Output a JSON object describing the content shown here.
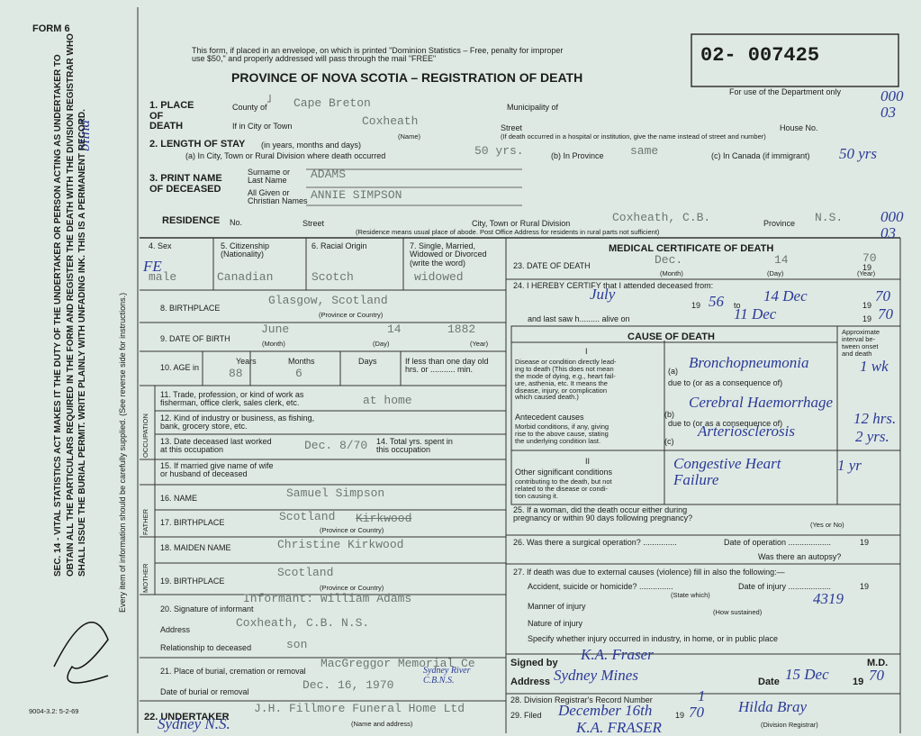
{
  "header": {
    "form": "FORM 6",
    "postal_note": "This form, if placed in an envelope, on which is printed \"Dominion Statistics – Free, penalty for improper\nuse $50,\" and properly addressed will pass through the mail \"FREE\"",
    "title": "PROVINCE OF NOVA SCOTIA – REGISTRATION OF DEATH",
    "registration_number": "02- 007425",
    "department_note": "For use of the Department only",
    "department_code": "000\n03"
  },
  "margin": {
    "notice": "SEC. 14 - VITAL STATISTICS ACT MAKES IT THE DUTY OF THE UNDERTAKER OR PERSON ACTING AS UNDERTAKER TO OBTAIN ALL THE PARTICULARS REQUIRED IN THE FORM AND REGISTER THE DEATH WITH THE DIVISION REGISTRAR WHO SHALL ISSUE THE BURIAL PERMIT. WRITE PLAINLY WITH UNFADING INK. THIS IS A PERMANENT RECORD.",
    "instruction": "Every item of information should be carefully supplied. (See reverse side for instructions.)",
    "handwritten": "blind",
    "print_code": "9004-3.2: 5-2-69"
  },
  "place": {
    "label": "1. PLACE\nOF\nDEATH",
    "county_label": "County of",
    "county": "Cape Breton",
    "municipality_label": "Municipality of",
    "city_label": "If in City or Town",
    "city": "Coxheath",
    "name_hint": "(Name)",
    "street_label": "Street",
    "house_label": "House No.",
    "hospital_note": "(If death occurred in a hospital or institution, give the name instead of street and number)"
  },
  "stay": {
    "label": "2. LENGTH OF STAY",
    "label_hint": "(in years, months and days)",
    "a_label": "(a) In City, Town or Rural Division where death occurred",
    "a": "50 yrs.",
    "b_label": "(b) In Province",
    "b": "same",
    "c_label": "(c) In Canada (if immigrant)",
    "c": "50 yrs"
  },
  "name": {
    "label": "3. PRINT NAME\nOF DECEASED",
    "surname_label": "Surname or\nLast Name",
    "surname": "ADAMS",
    "given_label": "All Given or\nChristian Names",
    "given": "ANNIE SIMPSON"
  },
  "residence": {
    "label": "RESIDENCE",
    "no_label": "No.",
    "street_label": "Street",
    "city_label": "City, Town or Rural Division",
    "city": "Coxheath, C.B.",
    "province_label": "Province",
    "province": "N.S.",
    "note": "(Residence means usual place of abode. Post Office Address for residents in rural parts not sufficient)",
    "code": "000\n03"
  },
  "personal": {
    "sex_label": "4. Sex",
    "sex_note": "FE",
    "sex": "male",
    "citizenship_label": "5. Citizenship\n(Nationality)",
    "citizenship": "Canadian",
    "racial_label": "6. Racial Origin",
    "racial": "Scotch",
    "status_label": "7. Single, Married,\nWidowed or Divorced\n(write the word)",
    "status": "widowed",
    "birthplace_label": "8. BIRTHPLACE",
    "birthplace": "Glasgow, Scotland",
    "birthplace_hint": "(Province or Country)",
    "dob_label": "9. DATE OF BIRTH",
    "dob_month": "June",
    "dob_day": "14",
    "dob_year": "1882",
    "month_hint": "(Month)",
    "day_hint": "(Day)",
    "year_hint": "(Year)",
    "age_label": "10. AGE in",
    "years_label": "Years",
    "years": "88",
    "months_label": "Months",
    "months": "6",
    "days_label": "Days",
    "infant_label": "If less than one day old\nhrs. or ........... min."
  },
  "occupation": {
    "section": "OCCUPATION",
    "trade_label": "11. Trade, profession, or kind of work as\nfisherman, office clerk, sales clerk, etc.",
    "trade": "at home",
    "industry_label": "12. Kind of industry or business, as fishing,\nbank, grocery store, etc.",
    "worked_label": "13. Date deceased last worked\nat this occupation",
    "worked": "Dec. 8/70",
    "years_label": "14. Total yrs. spent in\nthis occupation"
  },
  "spouse": {
    "label": "15. If married give name of wife\nor husband of deceased"
  },
  "father": {
    "section": "FATHER",
    "name_label": "16. NAME",
    "name": "Samuel Simpson",
    "birthplace_label": "17. BIRTHPLACE",
    "birthplace": "Scotland",
    "struck": "Kirkwood",
    "hint": "(Province or Country)"
  },
  "mother": {
    "section": "MOTHER",
    "name_label": "18. MAIDEN NAME",
    "name": "Christine Kirkwood",
    "birthplace_label": "19. BIRTHPLACE",
    "birthplace": "Scotland",
    "hint": "(Province or Country)"
  },
  "informant": {
    "label": "20. Signature of informant",
    "signature": "Informant: William Adams",
    "address_label": "Address",
    "address": "Coxheath, C.B. N.S.",
    "relationship_label": "Relationship to deceased",
    "relationship": "son"
  },
  "burial": {
    "place_label": "21. Place of burial, cremation or removal",
    "place": "MacGreggor Memorial Ce",
    "place_note": "Sydney River\nC.B.N.S.",
    "date_label": "Date of burial or removal",
    "date": "Dec. 16, 1970"
  },
  "undertaker": {
    "label": "22. UNDERTAKER",
    "name": "J.H. Fillmore Funeral Home Ltd",
    "hint": "(Name and address)",
    "address": "Sydney N.S."
  },
  "medical": {
    "title": "MEDICAL CERTIFICATE OF DEATH",
    "death_label": "23. DATE OF DEATH",
    "death_month": "Dec.",
    "death_day": "14",
    "death_century": "19",
    "death_year": "70",
    "month_hint": "(Month)",
    "day_hint": "(Day)",
    "year_hint": "(Year)",
    "certify_label": "24. I HEREBY CERTIFY that I attended deceased from:",
    "from": "July",
    "from_century": "19",
    "from_year": "56",
    "to_label": "to",
    "to": "14 Dec",
    "to_century": "19",
    "to_year": "70",
    "last_label": "and last saw h......... alive on",
    "last": "11 Dec",
    "last_century": "19",
    "last_year": "70"
  },
  "cause": {
    "title": "CAUSE OF DEATH",
    "interval_label": "Approximate\ninterval be-\ntween onset\nand death",
    "part1": "I",
    "direct_label": "Disease or condition directly lead-\ning to death (This does not mean\nthe mode of dying, e.g., heart fail-\nure, asthenia, etc. It means the\ndisease, injury, or complication\nwhich caused death.)",
    "a_label": "(a)",
    "a": "Bronchopneumonia",
    "a_interval": "1 wk",
    "due1": "due to (or as a consequence of)",
    "antecedent_label": "Antecedent causes",
    "antecedent_text": "Morbid conditions, if any, giving\nrise to the above cause, stating\nthe underlying condition last.",
    "b_label": "(b)",
    "b": "Cerebral Haemorrhage",
    "b_interval": "12 hrs.",
    "due2": "due to (or as a consequence of)",
    "c_label": "(c)",
    "c": "Arteriosclerosis",
    "c_interval": "2 yrs.",
    "part2": "II",
    "other_label": "Other significant conditions",
    "other_text": "contributing to the death, but not\nrelated to the disease or condi-\ntion causing it.",
    "other": "Congestive Heart\nFailure",
    "other_interval": "1 yr"
  },
  "questions": {
    "q25": "25. If a woman, did the death occur either during\npregnancy or within 90 days following pregnancy?",
    "q25_hint": "(Yes or No)",
    "q26": "26. Was there a surgical operation? ...............",
    "q26_date": "Date of operation ...................",
    "q26_century": "19",
    "q26_autopsy": "Was there an autopsy?",
    "q27": "27. If death was due to external causes (violence) fill in also the following:—",
    "q27_accident": "Accident, suicide or homicide? ...............",
    "q27_state": "(State which)",
    "q27_date": "Date of injury ...................",
    "q27_century": "19",
    "q27_manner": "Manner of injury",
    "q27_manner_value": "4319",
    "q27_how": "(How sustained)",
    "q27_nature": "Nature of injury",
    "q27_specify": "Specify whether injury occurred in industry, in home, or in public place"
  },
  "signature": {
    "signed_label": "Signed by",
    "signed": "K.A. Fraser",
    "md": "M.D.",
    "address_label": "Address",
    "address": "Sydney Mines",
    "date_label": "Date",
    "date": "15 Dec",
    "century": "19",
    "year": "70"
  },
  "registrar": {
    "record_label": "28. Division Registrar's Record Number",
    "record": "1",
    "filed_label": "29. Filed",
    "filed": "December 16th",
    "century": "19",
    "year": "70",
    "name": "Hilda Bray",
    "role": "(Division Registrar)",
    "stamp": "K.A. FRASER"
  }
}
